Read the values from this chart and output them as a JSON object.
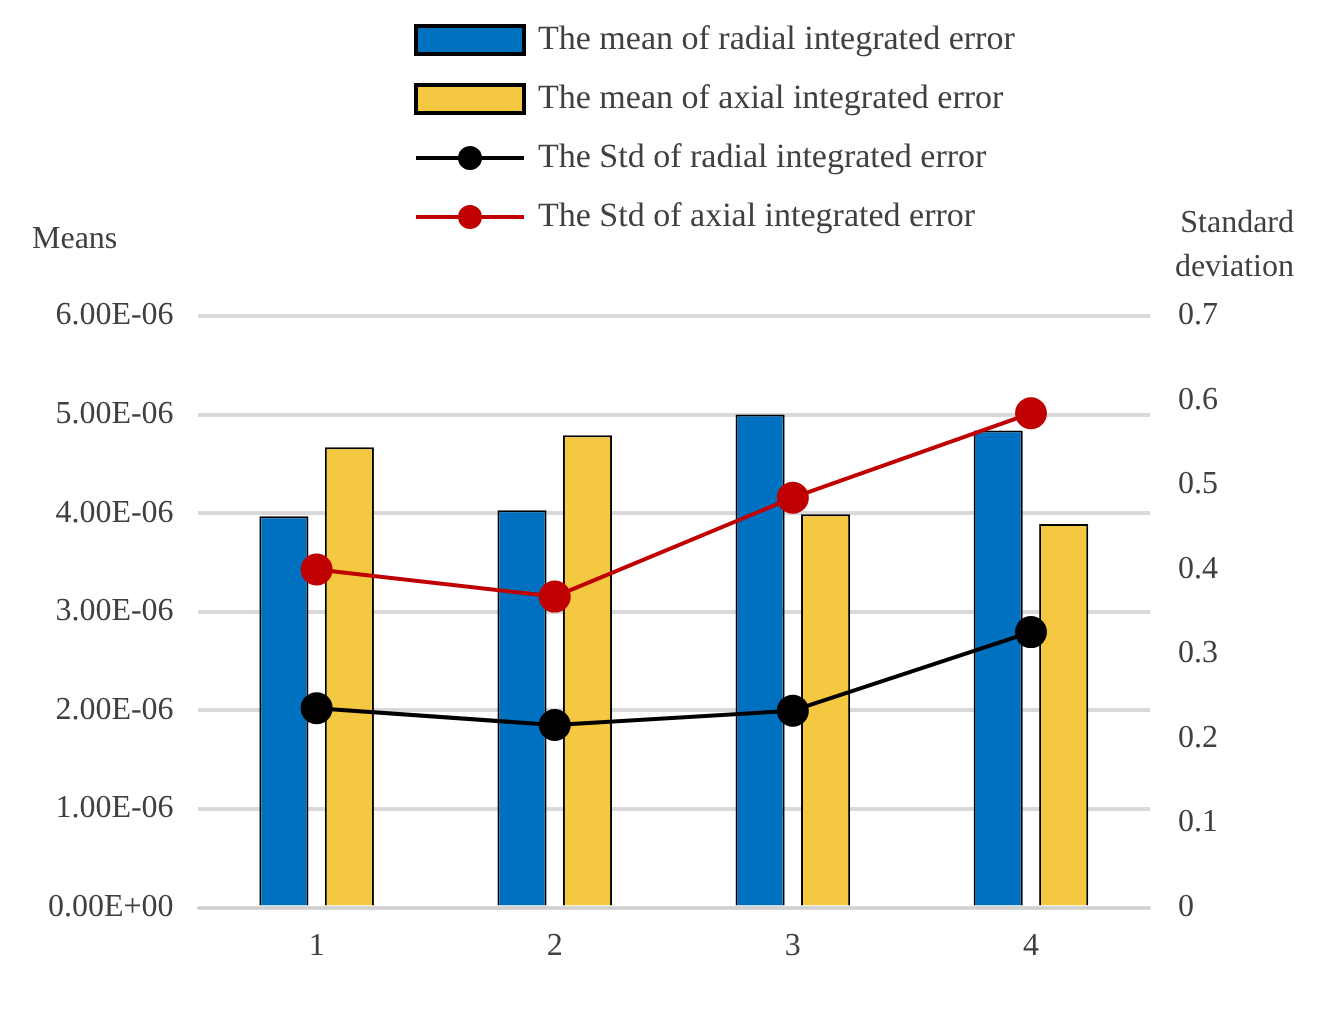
{
  "chart_data": {
    "type": "bar",
    "ylabel": "Means",
    "y2label": "Standard deviation",
    "categories": [
      "1",
      "2",
      "3",
      "4"
    ],
    "series": [
      {
        "name": "The mean of radial integrated error",
        "color": "#0070c0",
        "values": [
          3.97e-06,
          4.03e-06,
          5e-06,
          4.84e-06
        ]
      },
      {
        "name": "The mean of axial integrated error",
        "color": "#f5c842",
        "values": [
          4.67e-06,
          4.79e-06,
          3.99e-06,
          3.89e-06
        ]
      },
      {
        "name": "The Std of radial integrated error",
        "type": "line",
        "axis": "y2",
        "color": "#000000",
        "values": [
          0.236,
          0.216,
          0.233,
          0.326
        ]
      },
      {
        "name": "The Std of axial integrated error",
        "type": "line",
        "axis": "y2",
        "color": "#c00000",
        "values": [
          0.4,
          0.368,
          0.485,
          0.585
        ]
      }
    ],
    "ylim": [
      0,
      6e-06
    ],
    "yticks": [
      {
        "value": 0,
        "label": "0.00E+00"
      },
      {
        "value": 1e-06,
        "label": "1.00E-06"
      },
      {
        "value": 2e-06,
        "label": "2.00E-06"
      },
      {
        "value": 3e-06,
        "label": "3.00E-06"
      },
      {
        "value": 4e-06,
        "label": "4.00E-06"
      },
      {
        "value": 5e-06,
        "label": "5.00E-06"
      },
      {
        "value": 6e-06,
        "label": "6.00E-06"
      }
    ],
    "y2lim": [
      0,
      0.7
    ],
    "y2ticks": [
      0,
      0.1,
      0.2,
      0.3,
      0.4,
      0.5,
      0.6,
      0.7
    ],
    "grid": "y",
    "legend": "top",
    "marker": "circle",
    "line_style": "solid"
  }
}
